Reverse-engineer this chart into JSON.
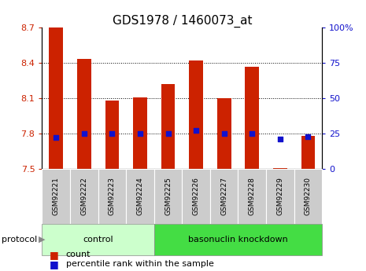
{
  "title": "GDS1978 / 1460073_at",
  "samples": [
    "GSM92221",
    "GSM92222",
    "GSM92223",
    "GSM92224",
    "GSM92225",
    "GSM92226",
    "GSM92227",
    "GSM92228",
    "GSM92229",
    "GSM92230"
  ],
  "red_values": [
    8.7,
    8.43,
    8.08,
    8.11,
    8.22,
    8.42,
    8.1,
    8.37,
    7.51,
    7.78
  ],
  "blue_values": [
    22,
    25,
    25,
    25,
    25,
    27,
    25,
    25,
    21,
    23
  ],
  "ylim_left": [
    7.5,
    8.7
  ],
  "ylim_right": [
    0,
    100
  ],
  "yticks_left": [
    7.5,
    7.8,
    8.1,
    8.4,
    8.7
  ],
  "yticks_right": [
    0,
    25,
    50,
    75,
    100
  ],
  "ytick_labels_left": [
    "7.5",
    "7.8",
    "8.1",
    "8.4",
    "8.7"
  ],
  "ytick_labels_right": [
    "0",
    "25",
    "50",
    "75",
    "100%"
  ],
  "red_color": "#cc2200",
  "blue_color": "#1111cc",
  "bar_width": 0.5,
  "n_control": 4,
  "control_label": "control",
  "knockdown_label": "basonuclin knockdown",
  "protocol_label": "protocol",
  "legend_count": "count",
  "legend_pct": "percentile rank within the sample",
  "tick_bg_color": "#cccccc",
  "control_bg": "#ccffcc",
  "knockdown_bg": "#44dd44",
  "title_fontsize": 11,
  "axis_fontsize": 8,
  "sample_fontsize": 6.5,
  "protocol_fontsize": 8,
  "legend_fontsize": 8
}
